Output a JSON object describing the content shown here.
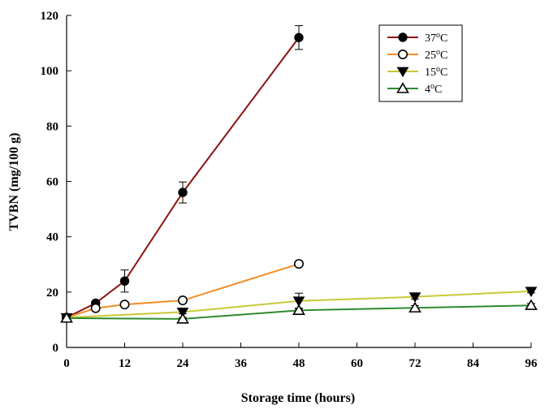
{
  "chart_data": {
    "type": "line",
    "title": "",
    "xlabel": "Storage time (hours)",
    "ylabel": "TVBN (mg/100 g)",
    "xlim": [
      0,
      96
    ],
    "ylim": [
      0,
      120
    ],
    "xticks": [
      0,
      12,
      24,
      36,
      48,
      60,
      72,
      84,
      96
    ],
    "yticks": [
      0,
      20,
      40,
      60,
      80,
      100,
      120
    ],
    "grid": false,
    "legend_position": "top-right",
    "series": [
      {
        "name": "37°C",
        "temp": "37",
        "unit": "C",
        "color": "#8b1414",
        "marker": "filled-circle",
        "x": [
          0,
          6,
          12,
          24,
          48
        ],
        "y": [
          10.8,
          16.0,
          24.0,
          56.0,
          112.0
        ],
        "err": [
          0,
          0,
          4.0,
          3.8,
          4.3
        ]
      },
      {
        "name": "25°C",
        "temp": "25",
        "unit": "C",
        "color": "#f28c28",
        "marker": "open-circle",
        "x": [
          0,
          6,
          12,
          24,
          48
        ],
        "y": [
          10.8,
          14.2,
          15.5,
          17.0,
          30.2
        ],
        "err": [
          0,
          0,
          0.8,
          0.6,
          0.8
        ]
      },
      {
        "name": "15°C",
        "temp": "15",
        "unit": "C",
        "color": "#c8c838",
        "marker": "filled-triangle-down",
        "x": [
          0,
          24,
          48,
          72,
          96
        ],
        "y": [
          10.8,
          12.8,
          16.8,
          18.3,
          20.3
        ],
        "err": [
          0,
          0.6,
          2.8,
          0.8,
          0.6
        ]
      },
      {
        "name": "4°C",
        "temp": "4",
        "unit": "C",
        "color": "#2e8b2e",
        "marker": "open-triangle-up",
        "x": [
          0,
          24,
          48,
          72,
          96
        ],
        "y": [
          10.6,
          10.3,
          13.4,
          14.3,
          15.2
        ],
        "err": [
          0,
          0.5,
          0.8,
          0.8,
          0.7
        ]
      }
    ]
  }
}
